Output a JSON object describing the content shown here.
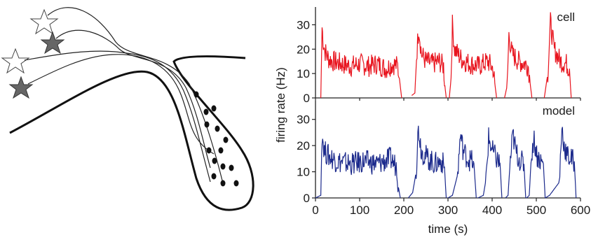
{
  "figure": {
    "left_panel": {
      "description_icons": [
        "star-neuron-outline-icon",
        "star-neuron-filled-icon"
      ]
    }
  },
  "chart_data": [
    {
      "type": "line",
      "panel_label": "cell",
      "color": "#e8141e",
      "xlim": [
        0,
        600
      ],
      "ylim": [
        0,
        35
      ],
      "yticks": [
        "0",
        "10",
        "20",
        "30"
      ],
      "ylabel": "firing rate (Hz)",
      "segments": [
        {
          "x": [
            12,
            15,
            18,
            22,
            30,
            40,
            60,
            80,
            100,
            120,
            140,
            160,
            175,
            186,
            190,
            195
          ],
          "y": [
            0,
            29,
            22,
            19,
            16,
            15,
            14,
            13,
            14,
            13,
            14,
            12,
            14,
            13,
            8,
            0
          ]
        },
        {
          "x": [
            218,
            225,
            230,
            234,
            240,
            250,
            265,
            280,
            290,
            293,
            296
          ],
          "y": [
            1,
            2,
            20,
            29,
            18,
            15,
            14,
            15,
            13,
            5,
            0
          ]
        },
        {
          "x": [
            303,
            307,
            310,
            315,
            330,
            350,
            370,
            390,
            402,
            406,
            410
          ],
          "y": [
            0,
            8,
            30,
            20,
            16,
            14,
            13,
            15,
            12,
            6,
            0
          ]
        },
        {
          "x": [
            428,
            434,
            438,
            445,
            460,
            475,
            482,
            486,
            490
          ],
          "y": [
            0,
            5,
            26,
            18,
            15,
            14,
            13,
            6,
            0
          ]
        },
        {
          "x": [
            518,
            526,
            532,
            540,
            555,
            568,
            575,
            579
          ],
          "y": [
            0,
            10,
            31,
            20,
            15,
            14,
            12,
            0
          ]
        }
      ]
    },
    {
      "type": "line",
      "panel_label": "model",
      "color": "#1c2a8c",
      "xlim": [
        0,
        600
      ],
      "ylim": [
        0,
        35
      ],
      "xticks": [
        "0",
        "100",
        "200",
        "300",
        "400",
        "500",
        "600"
      ],
      "yticks": [
        "0",
        "10",
        "20",
        "30"
      ],
      "xlabel": "time (s)",
      "segments": [
        {
          "x": [
            0,
            12,
            15,
            20,
            30,
            50,
            80,
            110,
            140,
            170,
            184,
            188,
            192
          ],
          "y": [
            0,
            1,
            25,
            18,
            16,
            14,
            13,
            14,
            13,
            15,
            12,
            4,
            0
          ]
        },
        {
          "x": [
            210,
            220,
            228,
            233,
            240,
            255,
            270,
            285,
            292,
            296
          ],
          "y": [
            0,
            2,
            10,
            27,
            18,
            15,
            13,
            14,
            12,
            0
          ]
        },
        {
          "x": [
            300,
            310,
            322,
            328,
            335,
            345,
            355,
            360,
            364
          ],
          "y": [
            0,
            1,
            9,
            24,
            18,
            15,
            14,
            10,
            0
          ]
        },
        {
          "x": [
            368,
            380,
            386,
            392,
            400,
            410,
            418,
            422
          ],
          "y": [
            0,
            1,
            7,
            23,
            18,
            15,
            13,
            0
          ]
        },
        {
          "x": [
            430,
            436,
            440,
            447,
            455,
            465,
            472,
            476
          ],
          "y": [
            0,
            1,
            12,
            24,
            17,
            14,
            13,
            0
          ]
        },
        {
          "x": [
            478,
            484,
            488,
            494,
            502,
            510,
            516,
            520
          ],
          "y": [
            0,
            1,
            14,
            23,
            16,
            14,
            13,
            0
          ]
        },
        {
          "x": [
            520,
            530,
            552,
            558,
            563,
            570,
            578,
            586,
            590
          ],
          "y": [
            0,
            1,
            6,
            27,
            20,
            16,
            15,
            14,
            0
          ]
        }
      ]
    }
  ]
}
